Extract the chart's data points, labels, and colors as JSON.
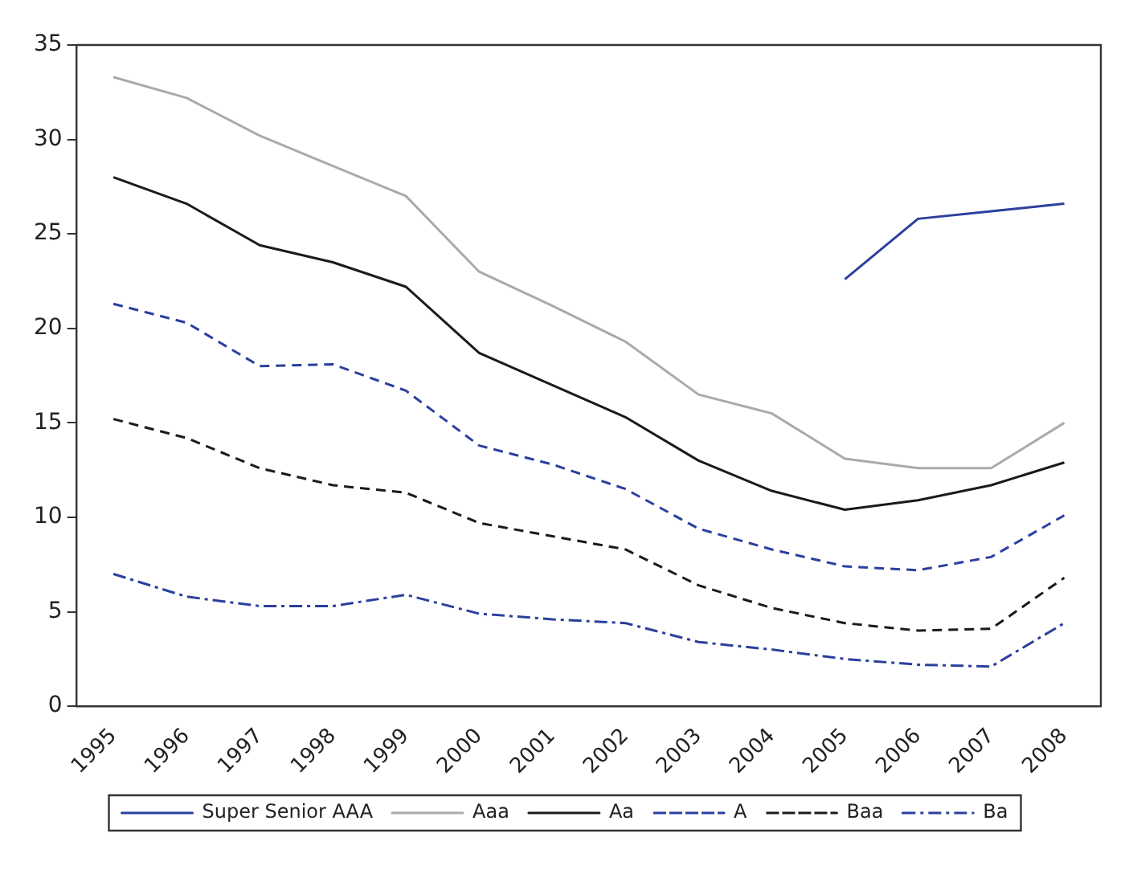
{
  "chart_data": {
    "type": "line",
    "categories": [
      "1995",
      "1996",
      "1997",
      "1998",
      "1999",
      "2000",
      "2001",
      "2002",
      "2003",
      "2004",
      "2005",
      "2006",
      "2007",
      "2008"
    ],
    "ylim": [
      0,
      35
    ],
    "yticks": [
      0,
      5,
      10,
      15,
      20,
      25,
      30,
      35
    ],
    "grid": false,
    "legend": "bottom",
    "marker": "none",
    "series": [
      {
        "name": "Super Senior AAA",
        "color": "#2b3f9e",
        "line_style": "solid",
        "values": [
          null,
          null,
          null,
          null,
          null,
          null,
          null,
          null,
          null,
          null,
          22.6,
          25.8,
          26.2,
          26.6
        ]
      },
      {
        "name": "Aaa",
        "color": "#aaaaaa",
        "line_style": "solid",
        "values": [
          33.3,
          32.2,
          30.2,
          28.6,
          27,
          23,
          21.2,
          19.3,
          16.5,
          15.5,
          13.1,
          12.6,
          12.6,
          15.0
        ]
      },
      {
        "name": "Aa",
        "color": "#1a1a1a",
        "line_style": "solid",
        "values": [
          28,
          26.6,
          24.4,
          23.5,
          22.2,
          18.7,
          17,
          15.3,
          13,
          11.4,
          10.4,
          10.9,
          11.7,
          12.9
        ]
      },
      {
        "name": "A",
        "color": "#2b3f9e",
        "line_style": "dashed",
        "values": [
          21.3,
          20.3,
          18,
          18.1,
          16.7,
          13.8,
          12.8,
          11.5,
          9.4,
          8.3,
          7.4,
          7.2,
          7.9,
          10.1
        ]
      },
      {
        "name": "Baa",
        "color": "#1a1a1a",
        "line_style": "dashed",
        "values": [
          15.2,
          14.2,
          12.6,
          11.7,
          11.3,
          9.7,
          9.0,
          8.3,
          6.4,
          5.2,
          4.4,
          4.0,
          4.1,
          6.8
        ]
      },
      {
        "name": "Ba",
        "color": "#2b3f9e",
        "line_style": "dashdot",
        "values": [
          7.0,
          5.8,
          5.3,
          5.3,
          5.9,
          4.9,
          4.6,
          4.4,
          3.4,
          3.0,
          2.5,
          2.2,
          2.1,
          4.4
        ]
      }
    ]
  }
}
